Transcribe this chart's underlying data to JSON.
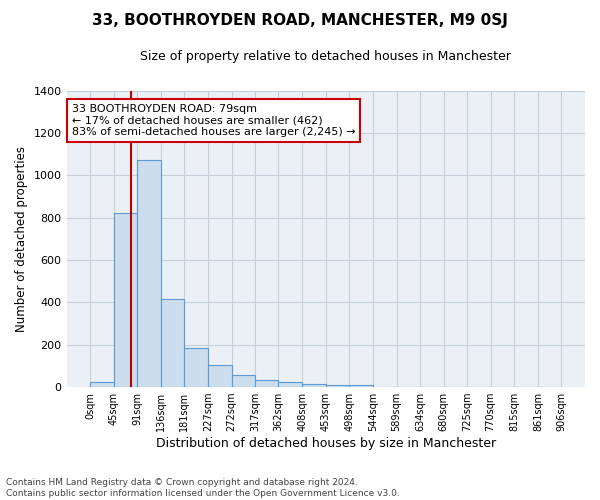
{
  "title": "33, BOOTHROYDEN ROAD, MANCHESTER, M9 0SJ",
  "subtitle": "Size of property relative to detached houses in Manchester",
  "xlabel": "Distribution of detached houses by size in Manchester",
  "ylabel": "Number of detached properties",
  "bar_edges": [
    0,
    45,
    91,
    136,
    181,
    227,
    272,
    317,
    362,
    408,
    453,
    498,
    544,
    589,
    634,
    680,
    725,
    770,
    815,
    861,
    906
  ],
  "bar_heights": [
    25,
    820,
    1070,
    415,
    185,
    105,
    55,
    35,
    25,
    15,
    10,
    10,
    0,
    0,
    0,
    0,
    0,
    0,
    0,
    0
  ],
  "bar_color": "#ccdded",
  "bar_edge_color": "#5b9bd5",
  "property_line_x": 79,
  "property_line_color": "#bb0000",
  "annotation_line1": "33 BOOTHROYDEN ROAD: 79sqm",
  "annotation_line2": "← 17% of detached houses are smaller (462)",
  "annotation_line3": "83% of semi-detached houses are larger (2,245) →",
  "annotation_box_facecolor": "#ffffff",
  "annotation_box_edgecolor": "#cc0000",
  "ylim": [
    0,
    1400
  ],
  "yticks": [
    0,
    200,
    400,
    600,
    800,
    1000,
    1200,
    1400
  ],
  "tick_labels": [
    "0sqm",
    "45sqm",
    "91sqm",
    "136sqm",
    "181sqm",
    "227sqm",
    "272sqm",
    "317sqm",
    "362sqm",
    "408sqm",
    "453sqm",
    "498sqm",
    "544sqm",
    "589sqm",
    "634sqm",
    "680sqm",
    "725sqm",
    "770sqm",
    "815sqm",
    "861sqm",
    "906sqm"
  ],
  "footnote_line1": "Contains HM Land Registry data © Crown copyright and database right 2024.",
  "footnote_line2": "Contains public sector information licensed under the Open Government Licence v3.0.",
  "bg_color": "#eaf0f6",
  "grid_color": "#c5cedb",
  "title_fontsize": 11,
  "subtitle_fontsize": 9,
  "ylabel_fontsize": 8.5,
  "xlabel_fontsize": 9,
  "ytick_fontsize": 8,
  "xtick_fontsize": 7
}
